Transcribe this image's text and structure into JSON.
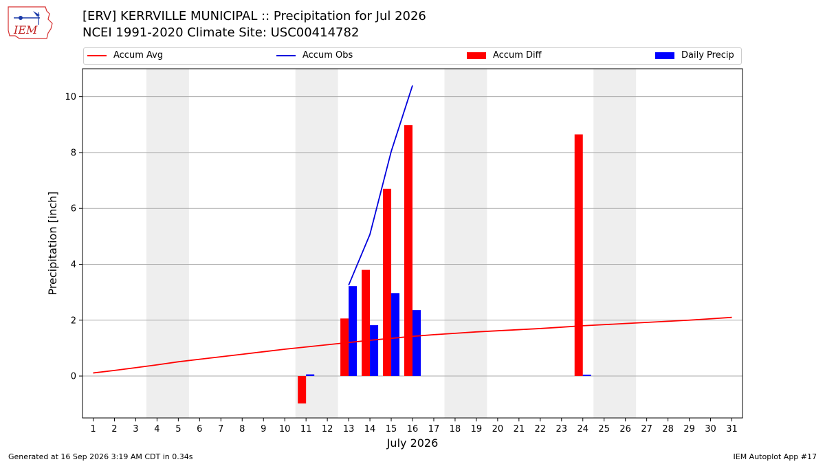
{
  "header": {
    "title_line1": "[ERV] KERRVILLE MUNICIPAL :: Precipitation for Jul 2026",
    "title_line2": "NCEI 1991-2020 Climate Site: USC00414782",
    "logo_text": "IEM"
  },
  "legend": {
    "accum_avg": "Accum Avg",
    "accum_obs": "Accum Obs",
    "accum_diff": "Accum Diff",
    "daily_precip": "Daily Precip"
  },
  "footer": {
    "generated": "Generated at 16 Sep 2026 3:19 AM CDT in 0.34s",
    "app": "IEM Autoplot App #17"
  },
  "colors": {
    "accum_avg": "#ff0000",
    "accum_obs": "#0000dd",
    "accum_diff": "#ff0000",
    "daily_precip": "#0000ff",
    "weekend_shade": "#eeeeee",
    "grid": "#aaaaaa"
  },
  "chart_data": {
    "type": "bar",
    "xlabel": "July 2026",
    "ylabel": "Precipitation [inch]",
    "xlim": [
      0.5,
      31.5
    ],
    "ylim": [
      -1.5,
      11.0
    ],
    "yticks": [
      0,
      2,
      4,
      6,
      8,
      10
    ],
    "x": [
      1,
      2,
      3,
      4,
      5,
      6,
      7,
      8,
      9,
      10,
      11,
      12,
      13,
      14,
      15,
      16,
      17,
      18,
      19,
      20,
      21,
      22,
      23,
      24,
      25,
      26,
      27,
      28,
      29,
      30,
      31
    ],
    "grid": "horizontal",
    "legend_placement": "top",
    "weekend_shading": [
      [
        3.5,
        5.5
      ],
      [
        10.5,
        12.5
      ],
      [
        17.5,
        19.5
      ],
      [
        24.5,
        26.5
      ]
    ],
    "series": [
      {
        "name": "Accum Avg",
        "kind": "line",
        "x": [
          1,
          2,
          3,
          4,
          5,
          6,
          7,
          8,
          9,
          10,
          11,
          12,
          13,
          14,
          15,
          16,
          17,
          18,
          19,
          20,
          21,
          22,
          23,
          24,
          25,
          26,
          27,
          28,
          29,
          30,
          31
        ],
        "values": [
          0.11,
          0.2,
          0.3,
          0.4,
          0.51,
          0.6,
          0.69,
          0.78,
          0.87,
          0.96,
          1.04,
          1.12,
          1.2,
          1.28,
          1.35,
          1.42,
          1.48,
          1.53,
          1.58,
          1.62,
          1.66,
          1.7,
          1.75,
          1.8,
          1.84,
          1.88,
          1.92,
          1.96,
          2.0,
          2.05,
          2.1
        ]
      },
      {
        "name": "Accum Obs",
        "kind": "line",
        "x": [
          13,
          14,
          15,
          16
        ],
        "values": [
          3.25,
          5.07,
          8.04,
          10.4
        ]
      },
      {
        "name": "Accum Diff",
        "kind": "bar",
        "x": [
          11,
          13,
          14,
          15,
          16,
          24
        ],
        "values": [
          -0.98,
          2.06,
          3.8,
          6.7,
          8.98,
          8.65
        ]
      },
      {
        "name": "Daily Precip",
        "kind": "bar",
        "x": [
          11,
          13,
          14,
          15,
          16,
          24
        ],
        "values": [
          0.06,
          3.22,
          1.82,
          2.97,
          2.36,
          0.05
        ]
      }
    ]
  }
}
